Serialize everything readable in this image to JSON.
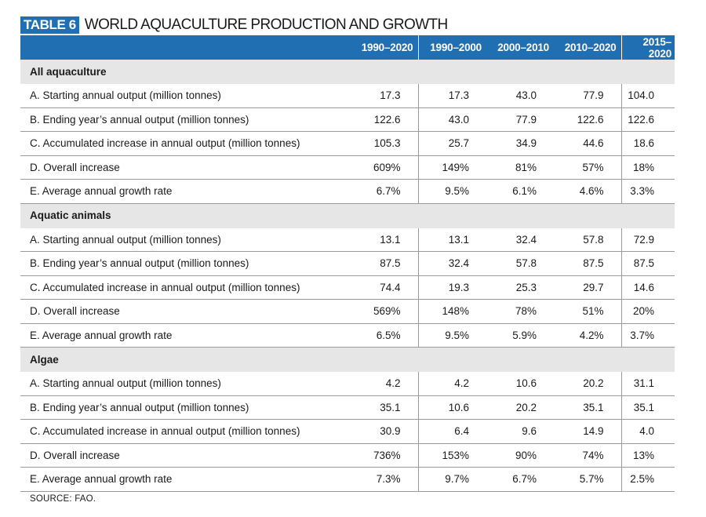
{
  "table_tag": "TABLE 6",
  "title": "WORLD AQUACULTURE PRODUCTION AND GROWTH",
  "columns": [
    "",
    "1990–2020",
    "1990–2000",
    "2000–2010",
    "2010–2020",
    "2015–2020"
  ],
  "sections": [
    {
      "name": "All aquaculture",
      "rows": [
        {
          "label": "A. Starting annual output (million tonnes)",
          "values": [
            "17.3",
            "17.3",
            "43.0",
            "77.9",
            "104.0"
          ]
        },
        {
          "label": "B. Ending year’s annual output (million tonnes)",
          "values": [
            "122.6",
            "43.0",
            "77.9",
            "122.6",
            "122.6"
          ]
        },
        {
          "label": "C. Accumulated increase in annual output (million tonnes)",
          "values": [
            "105.3",
            "25.7",
            "34.9",
            "44.6",
            "18.6"
          ]
        },
        {
          "label": "D. Overall increase",
          "values": [
            "609%",
            "149%",
            "81%",
            "57%",
            "18%"
          ]
        },
        {
          "label": "E. Average annual growth rate",
          "values": [
            "6.7%",
            "9.5%",
            "6.1%",
            "4.6%",
            "3.3%"
          ]
        }
      ]
    },
    {
      "name": "Aquatic animals",
      "rows": [
        {
          "label": "A. Starting annual output (million tonnes)",
          "values": [
            "13.1",
            "13.1",
            "32.4",
            "57.8",
            "72.9"
          ]
        },
        {
          "label": "B. Ending year’s annual output (million tonnes)",
          "values": [
            "87.5",
            "32.4",
            "57.8",
            "87.5",
            "87.5"
          ]
        },
        {
          "label": "C. Accumulated increase in annual output (million tonnes)",
          "values": [
            "74.4",
            "19.3",
            "25.3",
            "29.7",
            "14.6"
          ]
        },
        {
          "label": "D. Overall increase",
          "values": [
            "569%",
            "148%",
            "78%",
            "51%",
            "20%"
          ]
        },
        {
          "label": "E. Average annual growth rate",
          "values": [
            "6.5%",
            "9.5%",
            "5.9%",
            "4.2%",
            "3.7%"
          ]
        }
      ]
    },
    {
      "name": "Algae",
      "rows": [
        {
          "label": "A. Starting annual output (million tonnes)",
          "values": [
            "4.2",
            "4.2",
            "10.6",
            "20.2",
            "31.1"
          ]
        },
        {
          "label": "B. Ending year’s annual output (million tonnes)",
          "values": [
            "35.1",
            "10.6",
            "20.2",
            "35.1",
            "35.1"
          ]
        },
        {
          "label": "C. Accumulated increase in annual output (million tonnes)",
          "values": [
            "30.9",
            "6.4",
            "9.6",
            "14.9",
            "4.0"
          ]
        },
        {
          "label": "D. Overall increase",
          "values": [
            "736%",
            "153%",
            "90%",
            "74%",
            "13%"
          ]
        },
        {
          "label": "E. Average annual growth rate",
          "values": [
            "7.3%",
            "9.7%",
            "6.7%",
            "5.7%",
            "2.5%"
          ]
        }
      ]
    }
  ],
  "source": "SOURCE: FAO.",
  "colors": {
    "header_blue": "#1f6fb2",
    "section_gray": "#e6e6e6"
  }
}
